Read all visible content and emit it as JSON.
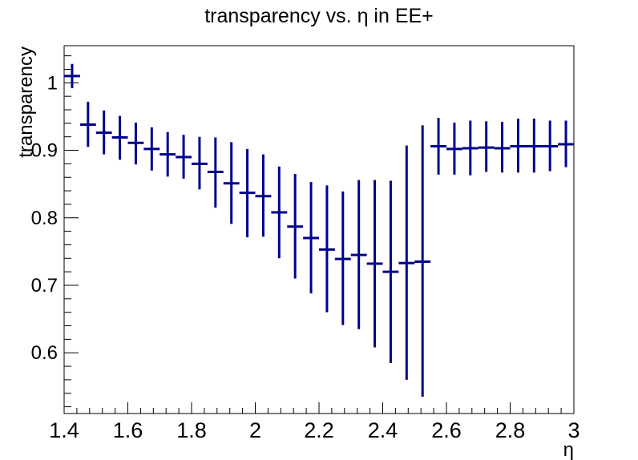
{
  "chart_data": {
    "type": "scatter",
    "title": "transparency vs. η in EE+",
    "xlabel": "η",
    "ylabel": "transparency",
    "xlim": [
      1.4,
      3.0
    ],
    "ylim": [
      0.51,
      1.055
    ],
    "x_ticks": [
      1.4,
      1.6,
      1.8,
      2.0,
      2.2,
      2.4,
      2.6,
      2.8,
      3.0
    ],
    "x_tick_labels": [
      "1.4",
      "1.6",
      "1.8",
      "2",
      "2.2",
      "2.4",
      "2.6",
      "2.8",
      "3"
    ],
    "y_ticks": [
      0.6,
      0.7,
      0.8,
      0.9,
      1.0
    ],
    "y_tick_labels": [
      "0.6",
      "0.7",
      "0.8",
      "0.9",
      "1"
    ],
    "grid": false,
    "marker_color": "#00008b",
    "series": [
      {
        "x": [
          1.425,
          1.475,
          1.525,
          1.575,
          1.625,
          1.675,
          1.725,
          1.775,
          1.825,
          1.875,
          1.925,
          1.975,
          2.025,
          2.075,
          2.125,
          2.175,
          2.225,
          2.275,
          2.325,
          2.375,
          2.425,
          2.475,
          2.525,
          2.575,
          2.625,
          2.675,
          2.725,
          2.775,
          2.825,
          2.875,
          2.925,
          2.975
        ],
        "xerr": 0.025,
        "y": [
          1.01,
          0.938,
          0.926,
          0.919,
          0.911,
          0.902,
          0.894,
          0.89,
          0.88,
          0.868,
          0.851,
          0.837,
          0.832,
          0.808,
          0.787,
          0.77,
          0.753,
          0.739,
          0.745,
          0.732,
          0.72,
          0.733,
          0.735,
          0.906,
          0.902,
          0.903,
          0.904,
          0.903,
          0.906,
          0.906,
          0.906,
          0.909
        ],
        "yerr_low": [
          0.018,
          0.033,
          0.032,
          0.033,
          0.032,
          0.032,
          0.033,
          0.032,
          0.038,
          0.053,
          0.06,
          0.066,
          0.06,
          0.068,
          0.077,
          0.082,
          0.093,
          0.098,
          0.11,
          0.124,
          0.135,
          0.173,
          0.2,
          0.042,
          0.038,
          0.04,
          0.036,
          0.036,
          0.039,
          0.039,
          0.037,
          0.034
        ],
        "yerr_high": [
          0.018,
          0.034,
          0.033,
          0.032,
          0.03,
          0.032,
          0.033,
          0.033,
          0.04,
          0.051,
          0.061,
          0.065,
          0.062,
          0.068,
          0.078,
          0.083,
          0.095,
          0.1,
          0.111,
          0.124,
          0.135,
          0.174,
          0.202,
          0.042,
          0.039,
          0.041,
          0.039,
          0.039,
          0.041,
          0.041,
          0.038,
          0.035
        ]
      }
    ]
  }
}
